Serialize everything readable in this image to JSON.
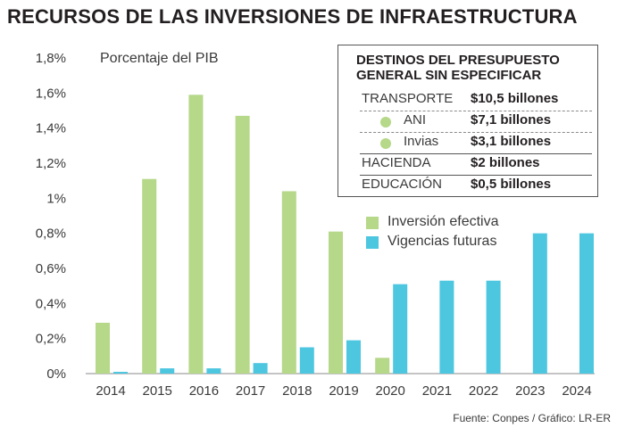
{
  "title": "RECURSOS DE LAS INVERSIONES DE INFRAESTRUCTURA",
  "chart_data": {
    "type": "bar",
    "ylabel": "Porcentaje del PIB",
    "categories": [
      "2014",
      "2015",
      "2016",
      "2017",
      "2018",
      "2019",
      "2020",
      "2021",
      "2022",
      "2023",
      "2024"
    ],
    "ylim": [
      0,
      1.8
    ],
    "yticks": [
      "0%",
      "0,2%",
      "0,4%",
      "0,6%",
      "0,8%",
      "1%",
      "1,2%",
      "1,4%",
      "1,6%",
      "1,8%"
    ],
    "grid": false,
    "legend_position": "right",
    "series": [
      {
        "name": "Inversión efectiva",
        "color": "#b5d889",
        "values": [
          0.29,
          1.11,
          1.59,
          1.47,
          1.04,
          0.81,
          0.09,
          0.0,
          0.0,
          0.0,
          0.0
        ]
      },
      {
        "name": "Vigencias futuras",
        "color": "#4dc6e0",
        "values": [
          0.01,
          0.03,
          0.03,
          0.06,
          0.15,
          0.19,
          0.51,
          0.53,
          0.53,
          0.8,
          0.8
        ]
      }
    ]
  },
  "panel": {
    "title": "DESTINOS DEL PRESUPUESTO GENERAL SIN ESPECIFICAR",
    "rows": [
      {
        "label": "TRANSPORTE",
        "value": "$10,5 billones"
      },
      {
        "label": "ANI",
        "value": "$7,1 billones"
      },
      {
        "label": "Invias",
        "value": "$3,1 billones"
      },
      {
        "label": "HACIENDA",
        "value": "$2 billones"
      },
      {
        "label": "EDUCACIÓN",
        "value": "$0,5 billones"
      }
    ]
  },
  "source": "Fuente: Conpes / Gráfico: LR-ER"
}
